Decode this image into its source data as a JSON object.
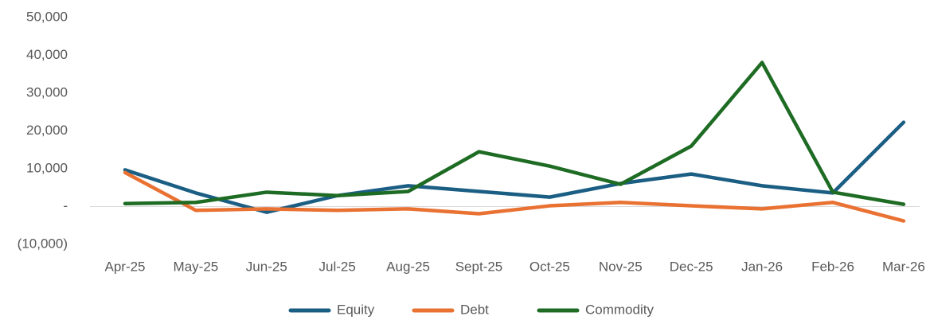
{
  "chart_data": {
    "type": "line",
    "categories": [
      "Apr-25",
      "May-25",
      "Jun-25",
      "Jul-25",
      "Aug-25",
      "Sept-25",
      "Oct-25",
      "Nov-25",
      "Dec-25",
      "Jan-26",
      "Feb-26",
      "Mar-26"
    ],
    "series": [
      {
        "name": "Equity",
        "color": "#1b5e84",
        "values": [
          9700,
          3600,
          -1500,
          2900,
          5500,
          4000,
          2500,
          6100,
          8600,
          5500,
          3600,
          22300
        ]
      },
      {
        "name": "Debt",
        "color": "#e97132",
        "values": [
          9000,
          -1000,
          -600,
          -1000,
          -600,
          -1900,
          200,
          1100,
          200,
          -600,
          1100,
          -3800
        ]
      },
      {
        "name": "Commodity",
        "color": "#1e6b24",
        "values": [
          800,
          1100,
          3800,
          2900,
          4000,
          14500,
          10700,
          5900,
          16000,
          38100,
          3800,
          600
        ]
      }
    ],
    "ylim": [
      -10000,
      50000
    ],
    "yticks": [
      {
        "value": 50000,
        "label": "50,000"
      },
      {
        "value": 40000,
        "label": "40,000"
      },
      {
        "value": 30000,
        "label": "30,000"
      },
      {
        "value": 20000,
        "label": "20,000"
      },
      {
        "value": 10000,
        "label": "10,000"
      },
      {
        "value": 0,
        "label": "-"
      },
      {
        "value": -10000,
        "label": "(10,000)"
      }
    ],
    "grid": false,
    "legend": "bottom"
  }
}
